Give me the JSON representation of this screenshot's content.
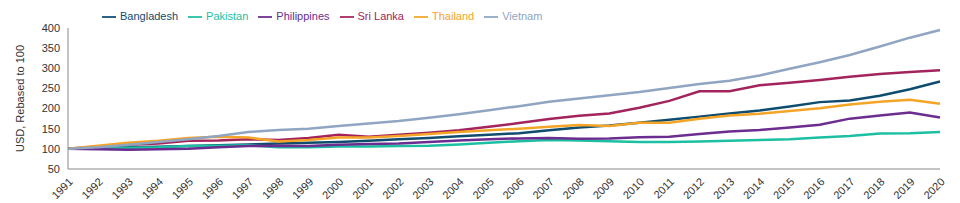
{
  "chart_data": {
    "type": "line",
    "y_label": "USD, Rebased to 100",
    "categories": [
      "1991",
      "1992",
      "1993",
      "1994",
      "1995",
      "1996",
      "1997",
      "1998",
      "1999",
      "2000",
      "2001",
      "2002",
      "2003",
      "2004",
      "2005",
      "2006",
      "2007",
      "2008",
      "2009",
      "2010",
      "2011",
      "2012",
      "2013",
      "2014",
      "2015",
      "2016",
      "2017",
      "2018",
      "2019",
      "2020"
    ],
    "series": [
      {
        "name": "Bangladesh",
        "color": "#0f4c6e",
        "values": [
          100,
          102,
          104,
          105,
          107,
          109,
          111,
          113,
          115,
          117,
          120,
          124,
          127,
          131,
          135,
          139,
          146,
          153,
          158,
          165,
          172,
          180,
          188,
          195,
          205,
          216,
          220,
          232,
          248,
          267
        ]
      },
      {
        "name": "Pakistan",
        "color": "#1dbfa3",
        "values": [
          100,
          104,
          103,
          104,
          107,
          108,
          109,
          104,
          104,
          106,
          106,
          107,
          108,
          111,
          115,
          119,
          122,
          121,
          119,
          117,
          117,
          118,
          120,
          122,
          124,
          128,
          132,
          138,
          139,
          142
        ]
      },
      {
        "name": "Philippines",
        "color": "#6b2d8f",
        "values": [
          100,
          99,
          98,
          99,
          100,
          104,
          107,
          108,
          107,
          110,
          112,
          113,
          117,
          121,
          124,
          126,
          127,
          125,
          126,
          129,
          130,
          137,
          143,
          147,
          153,
          160,
          175,
          183,
          190,
          178
        ]
      },
      {
        "name": "Sri Lanka",
        "color": "#a3245c",
        "values": [
          100,
          106,
          110,
          113,
          120,
          121,
          124,
          122,
          127,
          135,
          130,
          135,
          140,
          146,
          155,
          164,
          174,
          182,
          188,
          202,
          219,
          243,
          243,
          258,
          264,
          271,
          279,
          286,
          291,
          295
        ]
      },
      {
        "name": "Thailand",
        "color": "#f4a527",
        "values": [
          100,
          108,
          115,
          120,
          127,
          130,
          128,
          118,
          122,
          128,
          128,
          132,
          137,
          142,
          146,
          150,
          155,
          159,
          157,
          165,
          165,
          175,
          183,
          187,
          194,
          201,
          210,
          217,
          222,
          212
        ]
      },
      {
        "name": "Vietnam",
        "color": "#8fa5c2",
        "values": [
          100,
          104,
          110,
          117,
          124,
          132,
          142,
          147,
          150,
          157,
          163,
          169,
          177,
          186,
          196,
          206,
          217,
          225,
          233,
          241,
          251,
          261,
          269,
          282,
          299,
          315,
          333,
          354,
          376,
          395
        ]
      }
    ],
    "ylim": [
      50,
      400
    ],
    "yticks": [
      50,
      100,
      150,
      200,
      250,
      300,
      350,
      400
    ],
    "grid": false,
    "legend": "top"
  }
}
